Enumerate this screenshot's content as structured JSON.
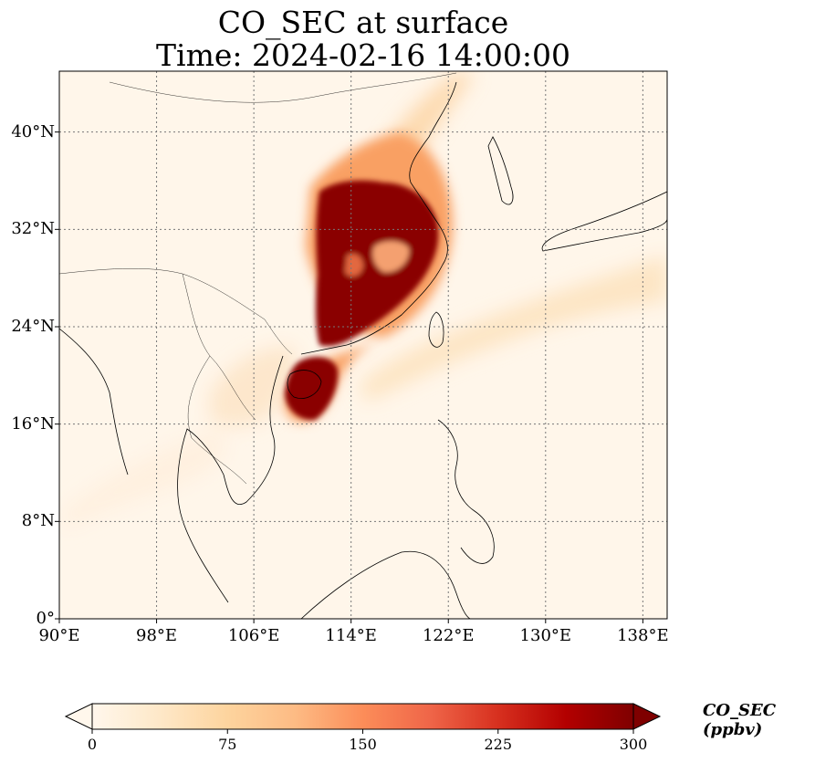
{
  "title": {
    "line1": "CO_SEC at surface",
    "line2": "Time: 2024-02-16 14:00:00"
  },
  "map": {
    "extent": {
      "lon_min": 90,
      "lon_max": 140,
      "lat_min": 0,
      "lat_max": 45
    },
    "grid": "dotted",
    "lat_ticks": [
      {
        "value": 0,
        "label": "0°"
      },
      {
        "value": 8,
        "label": "8°N"
      },
      {
        "value": 16,
        "label": "16°N"
      },
      {
        "value": 24,
        "label": "24°N"
      },
      {
        "value": 32,
        "label": "32°N"
      },
      {
        "value": 40,
        "label": "40°N"
      }
    ],
    "lon_ticks": [
      {
        "value": 90,
        "label": "90°E"
      },
      {
        "value": 98,
        "label": "98°E"
      },
      {
        "value": 106,
        "label": "106°E"
      },
      {
        "value": 114,
        "label": "114°E"
      },
      {
        "value": 122,
        "label": "122°E"
      },
      {
        "value": 130,
        "label": "130°E"
      },
      {
        "value": 138,
        "label": "138°E"
      }
    ],
    "plume": {
      "max_region": "Eastern China and Hainan",
      "light_band": "South China Sea to East China Sea"
    }
  },
  "colorbar": {
    "label": "CO_SEC (ppbv)",
    "ticks": [
      "0",
      "75",
      "150",
      "225",
      "300"
    ],
    "range": [
      0,
      300
    ],
    "colormap": "OrRd",
    "colors": [
      "#fff7ec",
      "#fee8c8",
      "#fdd49e",
      "#fdbb84",
      "#fc8d59",
      "#ef6548",
      "#d7301f",
      "#b30000",
      "#7f0000"
    ],
    "extend": "both"
  }
}
